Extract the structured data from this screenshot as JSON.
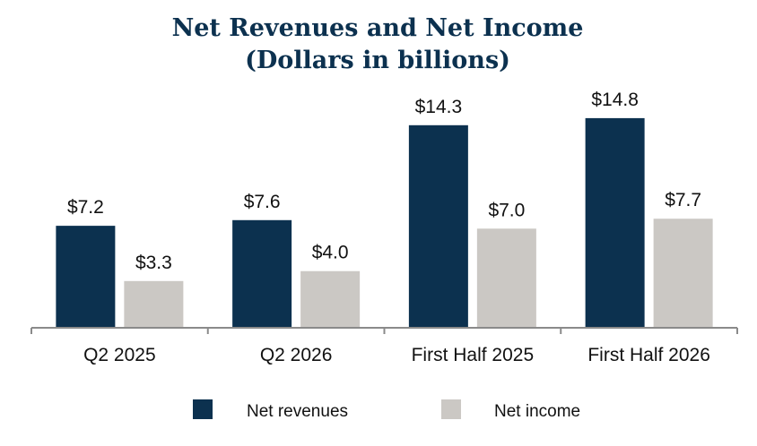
{
  "chart_data": {
    "type": "bar",
    "title_line1": "Net Revenues and Net Income",
    "title_line2": "(Dollars in billions)",
    "categories": [
      "Q2 2025",
      "Q2 2026",
      "First Half 2025",
      "First Half 2026"
    ],
    "series": [
      {
        "name": "Net revenues",
        "color": "#0c314f",
        "values": [
          7.2,
          7.6,
          14.3,
          14.8
        ],
        "labels": [
          "$7.2",
          "$7.6",
          "$14.3",
          "$14.8"
        ]
      },
      {
        "name": "Net income",
        "color": "#cbc8c4",
        "values": [
          3.3,
          4.0,
          7.0,
          7.7
        ],
        "labels": [
          "$3.3",
          "$4.0",
          "$7.0",
          "$7.7"
        ]
      }
    ],
    "ylim": [
      0,
      15.3
    ],
    "grid": false,
    "legend_position": "bottom"
  },
  "colors": {
    "title": "#0c314f",
    "axis": "#8a8a8a"
  }
}
